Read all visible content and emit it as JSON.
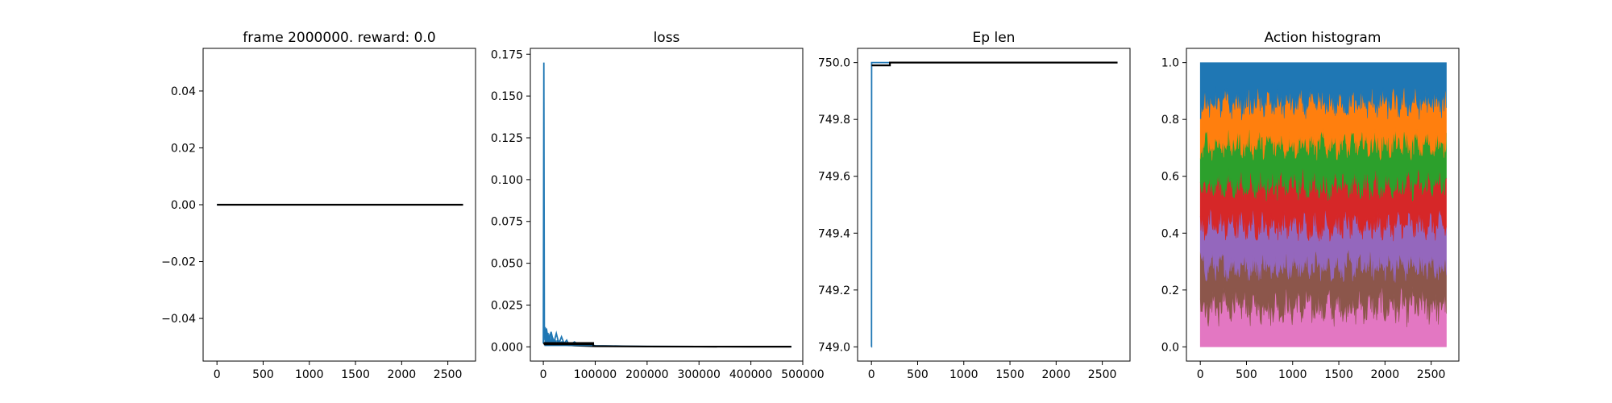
{
  "chart_data": [
    {
      "type": "line",
      "title": "frame 2000000. reward: 0.0",
      "xlabel": "",
      "ylabel": "",
      "xlim": [
        -150,
        2800
      ],
      "ylim": [
        -0.055,
        0.055
      ],
      "xticks": [
        "0",
        "500",
        "1000",
        "1500",
        "2000",
        "2500"
      ],
      "yticks": [
        "−0.04",
        "−0.02",
        "0.00",
        "0.02",
        "0.04"
      ],
      "grid": false,
      "series": [
        {
          "color": "#1f77b4",
          "x": [
            0,
            2665
          ],
          "y": [
            0.0,
            0.0
          ]
        },
        {
          "color": "#000000",
          "x": [
            0,
            2665
          ],
          "y": [
            0.0,
            0.0
          ]
        }
      ]
    },
    {
      "type": "line",
      "title": "loss",
      "xlabel": "",
      "ylabel": "",
      "xlim": [
        -25000,
        500000
      ],
      "ylim": [
        -0.0085,
        0.1785
      ],
      "xticks": [
        "0",
        "100000",
        "200000",
        "300000",
        "400000",
        "500000"
      ],
      "yticks": [
        "0.000",
        "0.025",
        "0.050",
        "0.075",
        "0.100",
        "0.125",
        "0.150",
        "0.175"
      ],
      "grid": false,
      "series": [
        {
          "color": "#1f77b4",
          "x": [
            0,
            1000,
            2000,
            3000,
            6000,
            10000,
            15000,
            20000,
            25000,
            30000,
            35000,
            40000,
            45000,
            50000,
            60000,
            70000,
            80000,
            100000,
            130000,
            160000,
            200000,
            300000,
            400000,
            478000
          ],
          "y": [
            0.002,
            0.17,
            0.012,
            0.004,
            0.011,
            0.003,
            0.009,
            0.002,
            0.008,
            0.002,
            0.006,
            0.002,
            0.004,
            0.001,
            0.003,
            0.001,
            0.002,
            0.0007,
            0.0006,
            0.0004,
            0.0003,
            0.0002,
            0.0002,
            0.0002
          ]
        },
        {
          "color": "#000000",
          "x": [
            0,
            10000,
            30000,
            60000,
            100000,
            200000,
            300000,
            400000,
            478000
          ],
          "y": [
            0.002,
            0.0022,
            0.0015,
            0.0008,
            0.0004,
            0.0002,
            0.00015,
            0.0001,
            0.0001
          ]
        }
      ]
    },
    {
      "type": "line",
      "title": "Ep len",
      "xlabel": "",
      "ylabel": "",
      "xlim": [
        -150,
        2800
      ],
      "ylim": [
        748.95,
        750.05
      ],
      "xticks": [
        "0",
        "500",
        "1000",
        "1500",
        "2000",
        "2500"
      ],
      "yticks": [
        "749.0",
        "749.2",
        "749.4",
        "749.6",
        "749.8",
        "750.0"
      ],
      "grid": false,
      "series": [
        {
          "color": "#1f77b4",
          "x": [
            0,
            1,
            2,
            2665
          ],
          "y": [
            749.0,
            749.0,
            750.0,
            750.0
          ]
        },
        {
          "color": "#000000",
          "x": [
            2,
            200,
            200,
            2665
          ],
          "y": [
            749.99,
            749.99,
            750.0,
            750.0
          ]
        }
      ]
    },
    {
      "type": "area",
      "title": "Action histogram",
      "xlabel": "",
      "ylabel": "",
      "xlim": [
        -150,
        2800
      ],
      "ylim": [
        -0.05,
        1.05
      ],
      "xticks": [
        "0",
        "500",
        "1000",
        "1500",
        "2000",
        "2500"
      ],
      "yticks": [
        "0.0",
        "0.2",
        "0.4",
        "0.6",
        "0.8",
        "1.0"
      ],
      "grid": false,
      "stacked": true,
      "x_max": 2665,
      "series": [
        {
          "color": "#e377c2",
          "mean": 0.143,
          "noise": 0.05
        },
        {
          "color": "#8c564b",
          "mean": 0.143,
          "noise": 0.04
        },
        {
          "color": "#9467bd",
          "mean": 0.143,
          "noise": 0.04
        },
        {
          "color": "#d62728",
          "mean": 0.143,
          "noise": 0.04
        },
        {
          "color": "#2ca02c",
          "mean": 0.143,
          "noise": 0.04
        },
        {
          "color": "#ff7f0e",
          "mean": 0.143,
          "noise": 0.04
        },
        {
          "color": "#1f77b4",
          "mean": 0.142,
          "noise": 0.03
        }
      ]
    }
  ]
}
